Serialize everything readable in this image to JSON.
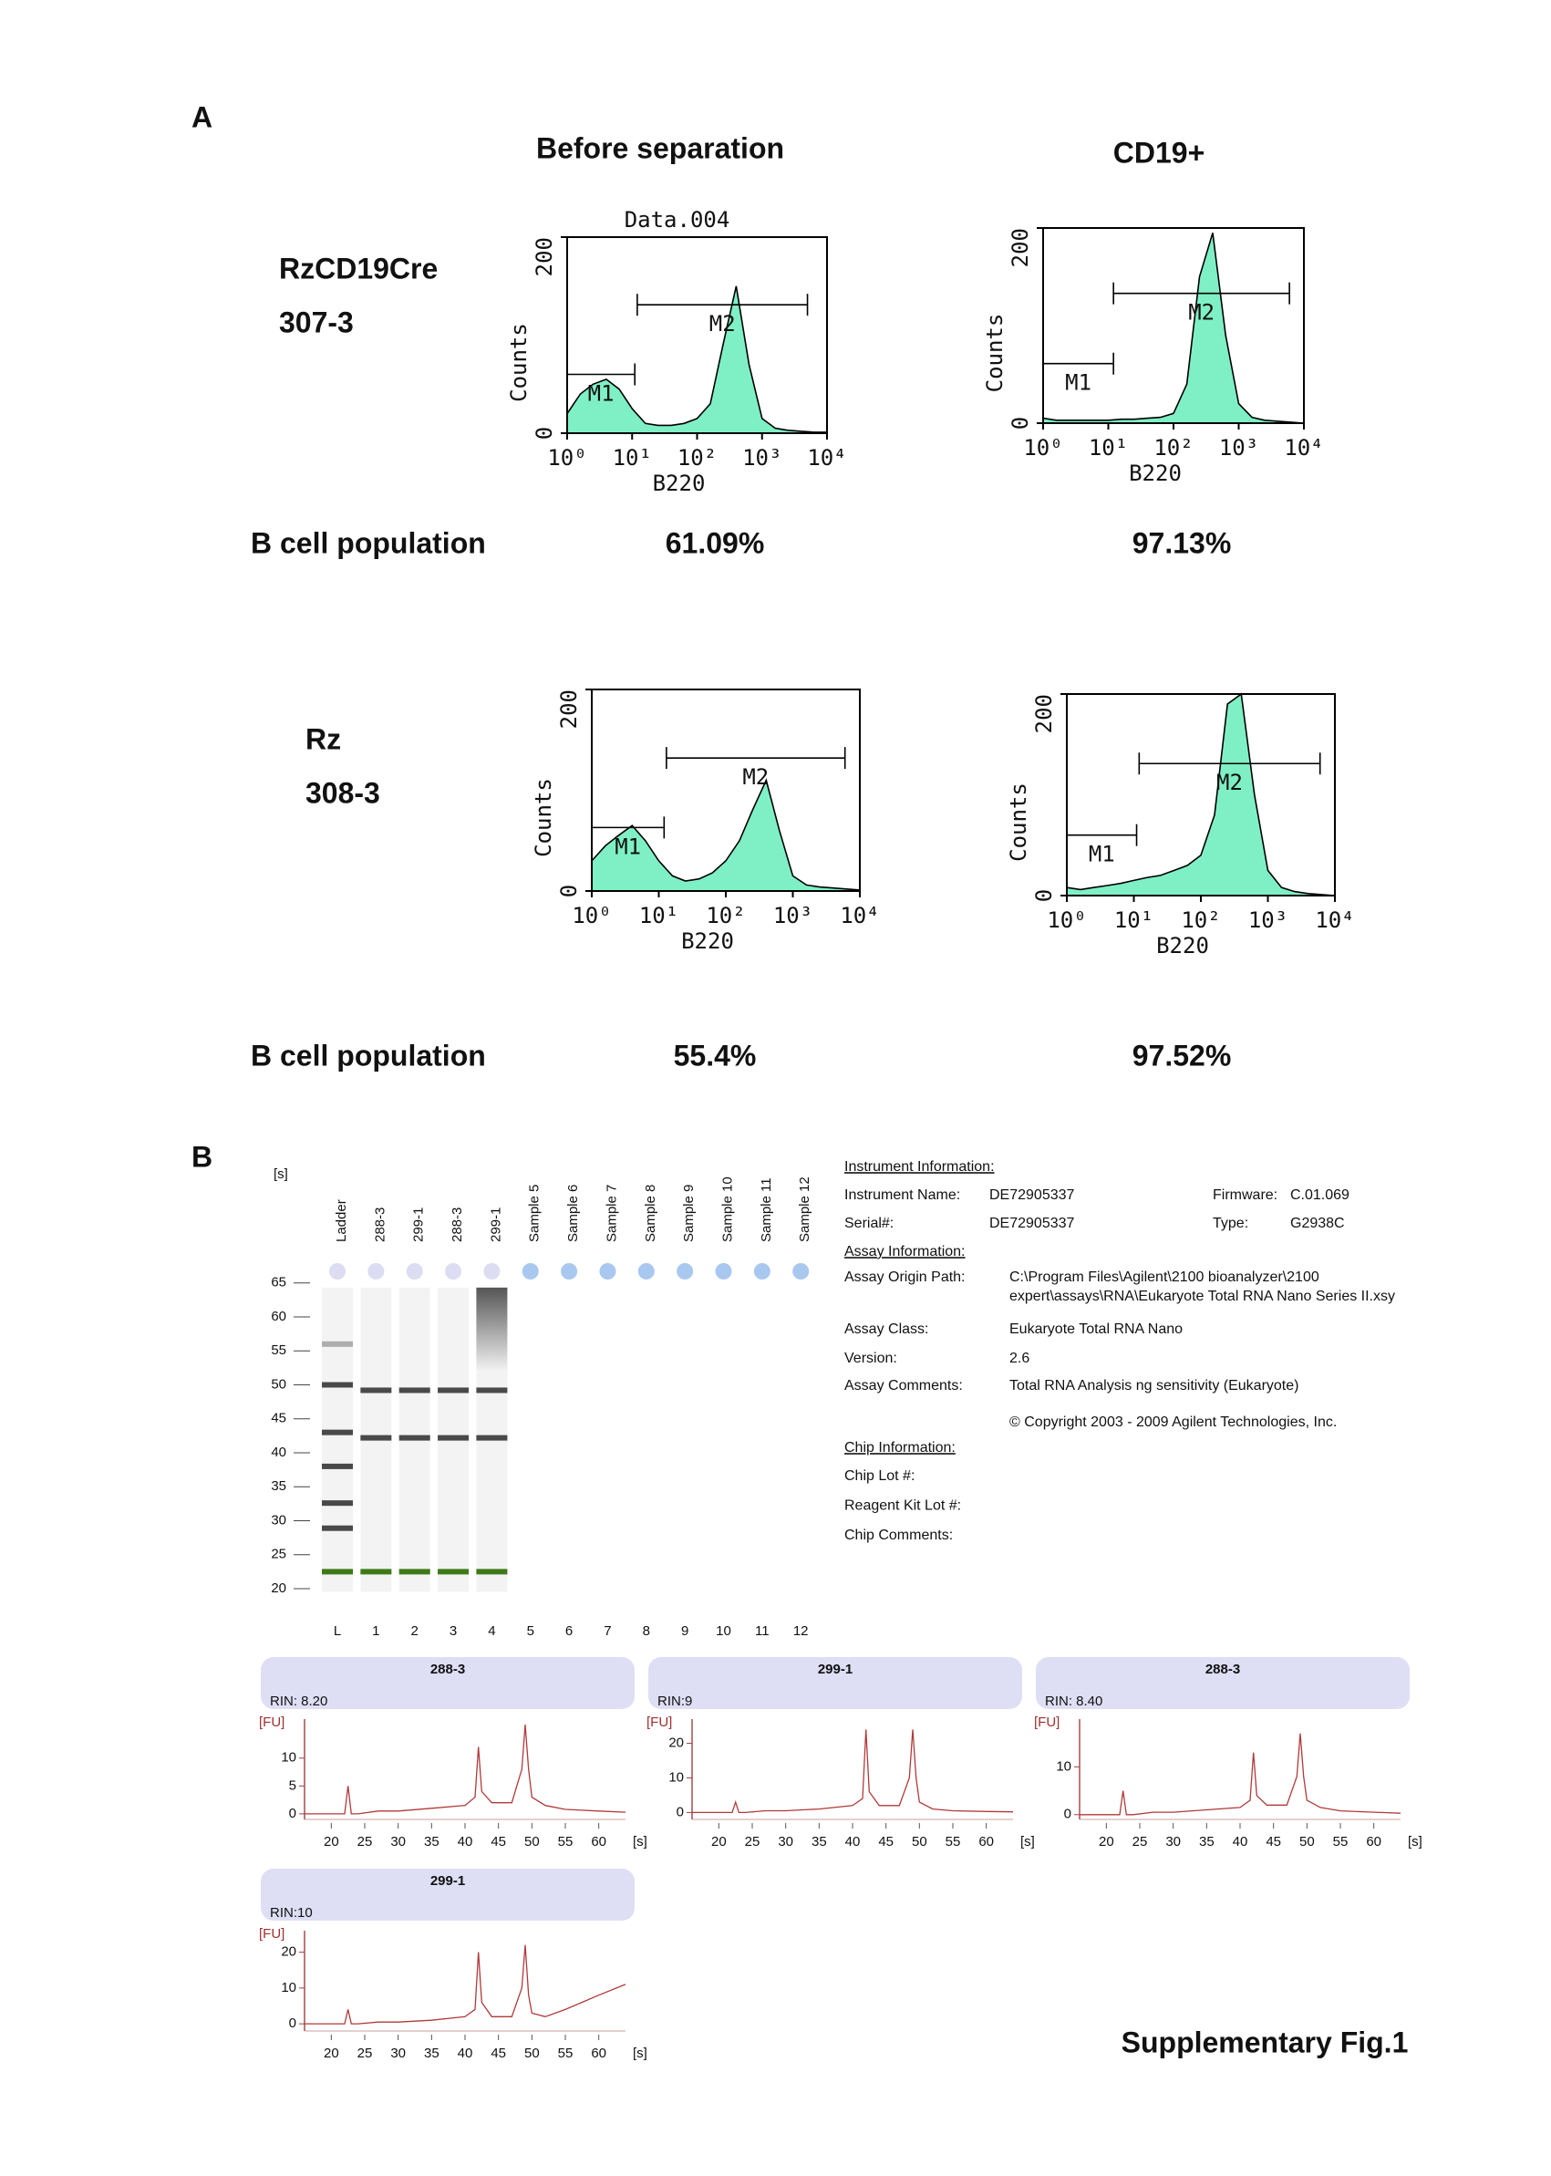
{
  "panel_a": {
    "label": "A",
    "columns": [
      "Before separation",
      "CD19+"
    ],
    "rows": [
      {
        "sample": [
          "RzCD19Cre",
          "307-3"
        ],
        "population_label": "B cell population",
        "populations": [
          "61.09%",
          "97.13%"
        ],
        "histograms": [
          {
            "type": "histogram",
            "title": "Data.004",
            "xlabel": "B220",
            "ylabel": "Counts",
            "log_x": true,
            "color": "#7ff0c6",
            "xlim": [
              1,
              10000
            ],
            "ylim": [
              0,
              200
            ],
            "xticks": [
              {
                "value": 1,
                "label": "10⁰"
              },
              {
                "value": 10,
                "label": "10¹"
              },
              {
                "value": 100,
                "label": "10²"
              },
              {
                "value": 1000,
                "label": "10³"
              },
              {
                "value": 10000,
                "label": "10⁴"
              }
            ],
            "yticks": [
              0,
              200
            ],
            "x": [
              1,
              1.6,
              2.5,
              4,
              6.3,
              10,
              16,
              25,
              40,
              63,
              100,
              160,
              250,
              400,
              630,
              1000,
              1600,
              2500,
              4000,
              6300,
              10000
            ],
            "values": [
              20,
              40,
              50,
              55,
              45,
              25,
              10,
              8,
              8,
              10,
              15,
              30,
              90,
              150,
              70,
              15,
              5,
              3,
              2,
              1,
              1
            ],
            "gates": [
              {
                "label": "M1",
                "range": [
                  1,
                  11
                ],
                "level": 60
              },
              {
                "label": "M2",
                "range": [
                  12,
                  5000
                ],
                "level": 131
              }
            ]
          },
          {
            "type": "histogram",
            "xlabel": "B220",
            "ylabel": "Counts",
            "log_x": true,
            "color": "#7ff0c6",
            "xlim": [
              1,
              10000
            ],
            "ylim": [
              0,
              200
            ],
            "xticks": [
              {
                "value": 1,
                "label": "10⁰"
              },
              {
                "value": 10,
                "label": "10¹"
              },
              {
                "value": 100,
                "label": "10²"
              },
              {
                "value": 1000,
                "label": "10³"
              },
              {
                "value": 10000,
                "label": "10⁴"
              }
            ],
            "yticks": [
              0,
              200
            ],
            "x": [
              1,
              1.6,
              2.5,
              4,
              6.3,
              10,
              16,
              25,
              40,
              63,
              100,
              160,
              250,
              400,
              630,
              1000,
              1600,
              2500,
              4000,
              6300,
              10000
            ],
            "values": [
              5,
              3,
              3,
              3,
              3,
              3,
              4,
              4,
              5,
              6,
              10,
              40,
              150,
              195,
              90,
              20,
              6,
              3,
              2,
              1,
              0
            ],
            "gates": [
              {
                "label": "M1",
                "range": [
                  1,
                  12
                ],
                "level": 61
              },
              {
                "label": "M2",
                "range": [
                  12,
                  6000
                ],
                "level": 133
              }
            ]
          }
        ]
      },
      {
        "sample": [
          "Rz",
          "308-3"
        ],
        "population_label": "B cell population",
        "populations": [
          "55.4%",
          "97.52%"
        ],
        "histograms": [
          {
            "type": "histogram",
            "xlabel": "B220",
            "ylabel": "Counts",
            "log_x": true,
            "color": "#7ff0c6",
            "xlim": [
              1,
              10000
            ],
            "ylim": [
              0,
              200
            ],
            "xticks": [
              {
                "value": 1,
                "label": "10⁰"
              },
              {
                "value": 10,
                "label": "10¹"
              },
              {
                "value": 100,
                "label": "10²"
              },
              {
                "value": 1000,
                "label": "10³"
              },
              {
                "value": 10000,
                "label": "10⁴"
              }
            ],
            "yticks": [
              0,
              200
            ],
            "x": [
              1,
              1.6,
              2.5,
              4,
              6.3,
              10,
              16,
              25,
              40,
              63,
              100,
              160,
              250,
              400,
              630,
              1000,
              1600,
              2500,
              4000,
              6300,
              10000
            ],
            "values": [
              30,
              45,
              55,
              65,
              50,
              30,
              15,
              10,
              12,
              18,
              30,
              50,
              80,
              110,
              60,
              15,
              6,
              4,
              3,
              2,
              1
            ],
            "gates": [
              {
                "label": "M1",
                "range": [
                  1,
                  12
                ],
                "level": 63
              },
              {
                "label": "M2",
                "range": [
                  13,
                  6000
                ],
                "level": 132
              }
            ]
          },
          {
            "type": "histogram",
            "xlabel": "B220",
            "ylabel": "Counts",
            "log_x": true,
            "color": "#7ff0c6",
            "xlim": [
              1,
              10000
            ],
            "ylim": [
              0,
              200
            ],
            "xticks": [
              {
                "value": 1,
                "label": "10⁰"
              },
              {
                "value": 10,
                "label": "10¹"
              },
              {
                "value": 100,
                "label": "10²"
              },
              {
                "value": 1000,
                "label": "10³"
              },
              {
                "value": 10000,
                "label": "10⁴"
              }
            ],
            "yticks": [
              0,
              200
            ],
            "x": [
              1,
              1.6,
              2.5,
              4,
              6.3,
              10,
              16,
              25,
              40,
              63,
              100,
              160,
              250,
              400,
              630,
              1000,
              1600,
              2500,
              4000,
              6300,
              10000
            ],
            "values": [
              8,
              6,
              8,
              10,
              12,
              15,
              18,
              20,
              25,
              30,
              40,
              80,
              190,
              200,
              100,
              25,
              8,
              4,
              2,
              1,
              0
            ],
            "gates": [
              {
                "label": "M1",
                "range": [
                  1,
                  11
                ],
                "level": 60
              },
              {
                "label": "M2",
                "range": [
                  12,
                  6000
                ],
                "level": 131
              }
            ]
          }
        ]
      }
    ]
  },
  "panel_b": {
    "label": "B",
    "gel": {
      "y_unit": "[s]",
      "ylim": [
        19,
        67
      ],
      "yticks": [
        65,
        60,
        55,
        50,
        45,
        40,
        35,
        30,
        25,
        20
      ],
      "band_color": "#2a2a2a",
      "marker_color": "#3d7a17",
      "lanes": [
        {
          "label": "Ladder",
          "number": "L",
          "bands": [
            56,
            50,
            43,
            38,
            32.6,
            28.9
          ],
          "marker": 22.5
        },
        {
          "label": "288-3",
          "number": "1",
          "bands": [
            49.2,
            42.2
          ],
          "marker": 22.5
        },
        {
          "label": "299-1",
          "number": "2",
          "bands": [
            49.2,
            42.2
          ],
          "marker": 22.5
        },
        {
          "label": "288-3",
          "number": "3",
          "bands": [
            49.2,
            42.2
          ],
          "marker": 22.5
        },
        {
          "label": "299-1",
          "number": "4",
          "bands": [
            49.2,
            42.2
          ],
          "marker": 22.5
        },
        {
          "label": "Sample 5",
          "number": "5",
          "bands": []
        },
        {
          "label": "Sample 6",
          "number": "6",
          "bands": []
        },
        {
          "label": "Sample 7",
          "number": "7",
          "bands": []
        },
        {
          "label": "Sample 8",
          "number": "8",
          "bands": []
        },
        {
          "label": "Sample 9",
          "number": "9",
          "bands": []
        },
        {
          "label": "Sample 10",
          "number": "10",
          "bands": []
        },
        {
          "label": "Sample 11",
          "number": "11",
          "bands": []
        },
        {
          "label": "Sample 12",
          "number": "12",
          "bands": []
        }
      ]
    },
    "instrument_info": {
      "heading": "Instrument Information:",
      "rows": [
        [
          "Instrument Name:",
          "DE72905337",
          "Firmware:",
          "C.01.069"
        ],
        [
          "Serial#:",
          "DE72905337",
          "Type:",
          "G2938C"
        ]
      ]
    },
    "assay_info": {
      "heading": "Assay Information:",
      "rows": [
        [
          "Assay Origin Path:",
          "C:\\Program Files\\Agilent\\2100 bioanalyzer\\2100",
          "expert\\assays\\RNA\\Eukaryote Total RNA Nano Series II.xsy"
        ],
        [
          "Assay Class:",
          "Eukaryote Total RNA Nano"
        ],
        [
          "Version:",
          "2.6"
        ],
        [
          "Assay Comments:",
          "Total RNA Analysis ng sensitivity (Eukaryote)"
        ]
      ],
      "copyright": "© Copyright 2003 - 2009 Agilent Technologies, Inc."
    },
    "chip_info": {
      "heading": "Chip Information:",
      "rows": [
        "Chip Lot #:",
        "Reagent Kit Lot #:",
        "Chip Comments:"
      ]
    },
    "electropherograms": [
      {
        "type": "line",
        "title": "288-3",
        "subtitle": "RIN: 8.20",
        "ylabel": "[FU]",
        "xlabel": "[s]",
        "color": "#b03a3a",
        "xlim": [
          16,
          64
        ],
        "ylim": [
          -1,
          17
        ],
        "xticks": [
          20,
          25,
          30,
          35,
          40,
          45,
          50,
          55,
          60
        ],
        "yticks": [
          0,
          5,
          10
        ],
        "x": [
          16,
          20,
          22,
          22.5,
          23,
          24,
          27,
          30,
          35,
          40,
          41.5,
          42,
          42.5,
          44,
          47,
          48.5,
          49,
          49.5,
          50,
          52,
          55,
          60,
          64
        ],
        "values": [
          0,
          0,
          0,
          5,
          0,
          0,
          0.5,
          0.5,
          1,
          1.5,
          3,
          12,
          4,
          2,
          2,
          8,
          16,
          8,
          3,
          1.5,
          0.8,
          0.5,
          0.3
        ]
      },
      {
        "type": "line",
        "title": "299-1",
        "subtitle": "RIN:9",
        "ylabel": "[FU]",
        "xlabel": "[s]",
        "color": "#b03a3a",
        "xlim": [
          16,
          64
        ],
        "ylim": [
          -2,
          27
        ],
        "xticks": [
          20,
          25,
          30,
          35,
          40,
          45,
          50,
          55,
          60
        ],
        "yticks": [
          0,
          10,
          20
        ],
        "x": [
          16,
          20,
          22,
          22.5,
          23,
          24,
          27,
          30,
          35,
          40,
          41.5,
          42,
          42.5,
          44,
          47,
          48.5,
          49,
          49.5,
          50,
          52,
          55,
          60,
          64
        ],
        "values": [
          0,
          0,
          0,
          3,
          0,
          0,
          0.5,
          0.5,
          1,
          2,
          4,
          24,
          6,
          2,
          2,
          10,
          24,
          10,
          3,
          1,
          0.5,
          0.3,
          0.2
        ]
      },
      {
        "type": "line",
        "title": "288-3",
        "subtitle": "RIN: 8.40",
        "ylabel": "[FU]",
        "xlabel": "[s]",
        "color": "#b03a3a",
        "xlim": [
          16,
          64
        ],
        "ylim": [
          -1,
          20
        ],
        "xticks": [
          20,
          25,
          30,
          35,
          40,
          45,
          50,
          55,
          60
        ],
        "yticks": [
          0,
          10
        ],
        "x": [
          16,
          20,
          22,
          22.5,
          23,
          24,
          27,
          30,
          35,
          40,
          41.5,
          42,
          42.5,
          44,
          47,
          48.5,
          49,
          49.5,
          50,
          52,
          55,
          60,
          64
        ],
        "values": [
          0,
          0,
          0,
          5,
          0,
          0,
          0.5,
          0.5,
          1,
          1.5,
          3,
          13,
          4,
          2,
          2,
          8,
          17,
          8,
          3,
          1.5,
          0.8,
          0.5,
          0.3
        ]
      },
      {
        "type": "line",
        "title": "299-1",
        "subtitle": "RIN:10",
        "ylabel": "[FU]",
        "xlabel": "[s]",
        "color": "#b03a3a",
        "xlim": [
          16,
          64
        ],
        "ylim": [
          -2,
          26
        ],
        "xticks": [
          20,
          25,
          30,
          35,
          40,
          45,
          50,
          55,
          60
        ],
        "yticks": [
          0,
          10,
          20
        ],
        "x": [
          16,
          20,
          22,
          22.5,
          23,
          24,
          27,
          30,
          35,
          40,
          41.5,
          42,
          42.5,
          44,
          47,
          48.5,
          49,
          49.5,
          50,
          52,
          55,
          60,
          64
        ],
        "values": [
          0,
          0,
          0,
          4,
          0,
          0,
          0.5,
          0.5,
          1,
          2,
          4,
          20,
          6,
          2,
          2,
          10,
          22,
          8,
          3,
          2,
          4,
          8,
          11
        ]
      }
    ]
  },
  "footer": "Supplementary Fig.1"
}
